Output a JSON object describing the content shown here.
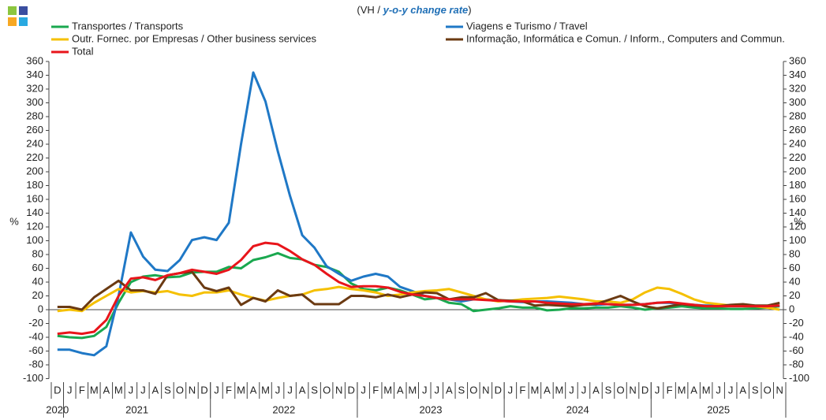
{
  "chart_data": {
    "type": "line",
    "title_prefix": "(VH / ",
    "title_emphasis": "y-o-y change rate",
    "title_suffix": ")",
    "y_label": "%",
    "y2_label": "%",
    "categories": [
      "D",
      "J",
      "F",
      "M",
      "A",
      "M",
      "J",
      "J",
      "A",
      "S",
      "O",
      "N",
      "D",
      "J",
      "F",
      "M",
      "A",
      "M",
      "J",
      "J",
      "A",
      "S",
      "O",
      "N",
      "D",
      "J",
      "F",
      "M",
      "A",
      "M",
      "J",
      "J",
      "A",
      "S",
      "O",
      "N",
      "D",
      "J",
      "F",
      "M",
      "A",
      "M",
      "J",
      "J",
      "A",
      "S",
      "O",
      "N",
      "D",
      "J",
      "F",
      "M",
      "A",
      "M",
      "J",
      "J",
      "A",
      "S",
      "O",
      "N"
    ],
    "x_groups": [
      {
        "label": "2020",
        "count": 1
      },
      {
        "label": "2021",
        "count": 12
      },
      {
        "label": "2022",
        "count": 12
      },
      {
        "label": "2023",
        "count": 12
      },
      {
        "label": "2024",
        "count": 12
      },
      {
        "label": "2025",
        "count": 11
      }
    ],
    "ylim": [
      -100,
      360
    ],
    "yticks": [
      -100,
      -80,
      -60,
      -40,
      -20,
      0,
      20,
      40,
      60,
      80,
      100,
      120,
      140,
      160,
      180,
      200,
      220,
      240,
      260,
      280,
      300,
      320,
      340,
      360
    ],
    "y2lim": [
      -100,
      360
    ],
    "y2ticks": [
      -100,
      -80,
      -60,
      -40,
      -20,
      0,
      20,
      40,
      60,
      80,
      100,
      120,
      140,
      160,
      180,
      200,
      220,
      240,
      260,
      280,
      300,
      320,
      340,
      360
    ],
    "grid": false,
    "legend_position": "top",
    "series": [
      {
        "name": "Transportes / Transports",
        "color": "#1aa84f",
        "values": [
          -38,
          -40,
          -41,
          -38,
          -25,
          10,
          40,
          48,
          50,
          47,
          48,
          54,
          55,
          55,
          62,
          60,
          72,
          76,
          82,
          75,
          73,
          65,
          62,
          55,
          38,
          30,
          28,
          32,
          28,
          22,
          15,
          17,
          10,
          8,
          -2,
          0,
          2,
          5,
          3,
          3,
          -1,
          0,
          2,
          2,
          3,
          3,
          5,
          3,
          0,
          2,
          3,
          5,
          3,
          2,
          2,
          1,
          1,
          2,
          3,
          5
        ]
      },
      {
        "name": "Viagens e Turismo / Travel",
        "color": "#1f78c6",
        "values": [
          -58,
          -58,
          -63,
          -66,
          -53,
          20,
          112,
          77,
          58,
          56,
          72,
          101,
          105,
          101,
          126,
          240,
          344,
          302,
          230,
          165,
          108,
          90,
          63,
          52,
          42,
          48,
          52,
          48,
          33,
          27,
          20,
          17,
          15,
          12,
          15,
          15,
          13,
          12,
          11,
          12,
          12,
          11,
          10,
          8,
          7,
          8,
          7,
          7,
          8,
          10,
          10,
          8,
          7,
          6,
          6,
          5,
          5,
          5,
          5,
          6
        ]
      },
      {
        "name": "Outr. Fornec. por Empresas / Other business services",
        "color": "#f5c000",
        "values": [
          -2,
          0,
          -2,
          10,
          20,
          30,
          25,
          27,
          25,
          27,
          22,
          20,
          25,
          25,
          28,
          22,
          17,
          13,
          17,
          20,
          22,
          28,
          30,
          33,
          30,
          28,
          25,
          20,
          22,
          25,
          27,
          28,
          30,
          25,
          20,
          15,
          12,
          13,
          15,
          16,
          17,
          19,
          17,
          15,
          12,
          12,
          10,
          15,
          25,
          32,
          30,
          23,
          15,
          10,
          8,
          6,
          5,
          5,
          3,
          0
        ]
      },
      {
        "name": "Informação, Informática e Comun. / Inform., Computers and Commun.",
        "color": "#6b3a12",
        "values": [
          4,
          4,
          0,
          18,
          30,
          42,
          28,
          28,
          23,
          50,
          53,
          55,
          32,
          27,
          32,
          7,
          17,
          12,
          28,
          20,
          22,
          8,
          8,
          8,
          20,
          20,
          18,
          22,
          18,
          22,
          25,
          24,
          15,
          18,
          18,
          24,
          14,
          13,
          12,
          6,
          7,
          6,
          5,
          7,
          8,
          14,
          20,
          12,
          5,
          2,
          5,
          8,
          6,
          5,
          5,
          7,
          8,
          6,
          6,
          10
        ]
      },
      {
        "name": "Total",
        "color": "#e8151b",
        "values": [
          -35,
          -33,
          -35,
          -32,
          -15,
          20,
          45,
          47,
          43,
          50,
          53,
          58,
          55,
          52,
          58,
          72,
          92,
          97,
          95,
          85,
          73,
          65,
          52,
          40,
          33,
          34,
          34,
          32,
          26,
          22,
          20,
          17,
          15,
          15,
          15,
          14,
          13,
          12,
          12,
          12,
          10,
          9,
          8,
          8,
          9,
          8,
          7,
          7,
          8,
          10,
          11,
          9,
          7,
          5,
          5,
          5,
          5,
          5,
          5,
          6
        ]
      }
    ]
  }
}
